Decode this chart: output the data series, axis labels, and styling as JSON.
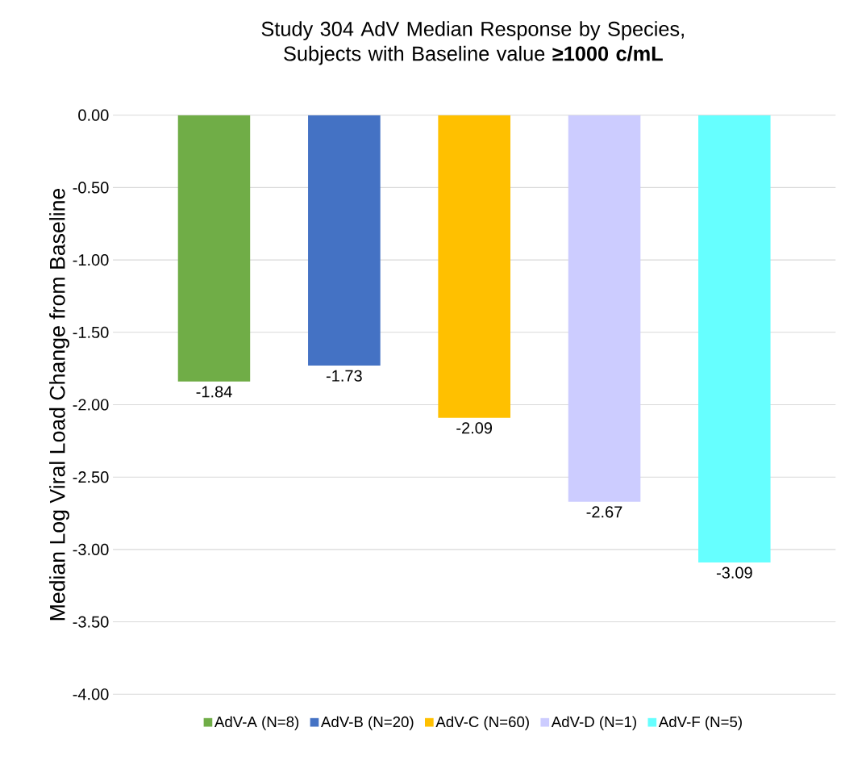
{
  "chart_data": {
    "type": "bar",
    "title": "Study 304 AdV Median Response by Species, Subjects with Baseline value **≥1000 c/mL**",
    "ylabel": "Median Log Viral Load Change from Baseline",
    "categories": [
      null
    ],
    "series": [
      {
        "name": "AdV-A (N=8)",
        "color": "#70ad47",
        "values": [
          -1.84
        ],
        "value_labels": [
          "-1.84"
        ]
      },
      {
        "name": "AdV-B (N=20)",
        "color": "#4472c4",
        "values": [
          -1.73
        ],
        "value_labels": [
          "-1.73"
        ]
      },
      {
        "name": "AdV-C (N=60)",
        "color": "#ffc000",
        "values": [
          -2.09
        ],
        "value_labels": [
          "-2.09"
        ]
      },
      {
        "name": "AdV-D (N=1)",
        "color": "#ccccff",
        "values": [
          -2.67
        ],
        "value_labels": [
          "-2.67"
        ]
      },
      {
        "name": "AdV-F (N=5)",
        "color": "#66ffff",
        "values": [
          -3.09
        ],
        "value_labels": [
          "-3.09"
        ]
      }
    ],
    "ylim": [
      -4,
      0
    ],
    "yticks": [
      {
        "value": 0,
        "label": "0.00"
      },
      {
        "value": -0.5,
        "label": "-0.50"
      },
      {
        "value": -1,
        "label": "-1.00"
      },
      {
        "value": -1.5,
        "label": "-1.50"
      },
      {
        "value": -2,
        "label": "-2.00"
      },
      {
        "value": -2.5,
        "label": "-2.50"
      },
      {
        "value": -3,
        "label": "-3.00"
      },
      {
        "value": -3.5,
        "label": "-3.50"
      },
      {
        "value": -4,
        "label": "-4.00"
      }
    ],
    "grid": "y",
    "legend": "bottom"
  }
}
